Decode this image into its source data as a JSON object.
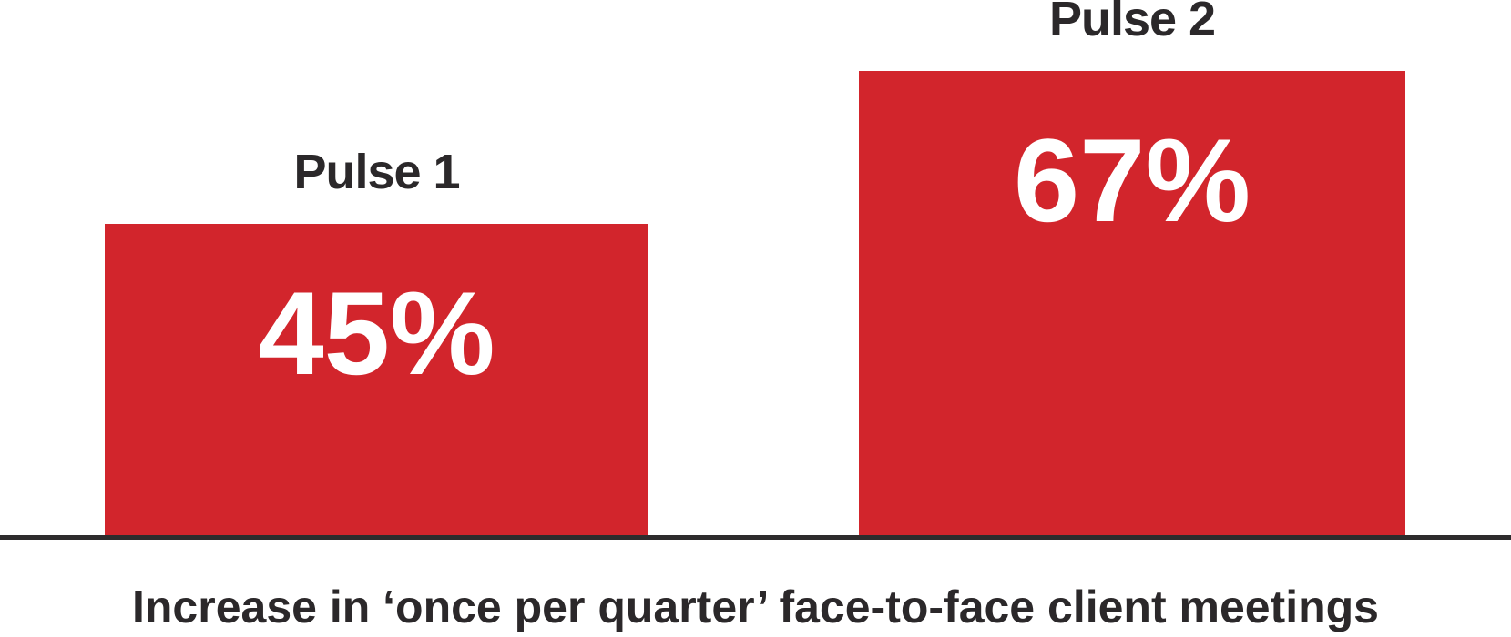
{
  "chart_data": {
    "type": "bar",
    "title": "Increase in ‘once per quarter’ face-to-face client meetings",
    "categories": [
      "Pulse 1",
      "Pulse 2"
    ],
    "values": [
      45,
      67
    ],
    "value_labels": [
      "45%",
      "67%"
    ],
    "unit": "%",
    "ylim": [
      0,
      70
    ],
    "grid": false,
    "legend": "none",
    "orientation": "vertical",
    "value_label_position": "inside-top",
    "category_label_position": "above-bar",
    "caption_position": "below-axis",
    "colors": {
      "bar": "#d2252c",
      "value_label": "#ffffff",
      "category_label": "#2b282a",
      "caption": "#2b282a",
      "axis_line": "#2e2c2d",
      "background": "#ffffff"
    }
  }
}
